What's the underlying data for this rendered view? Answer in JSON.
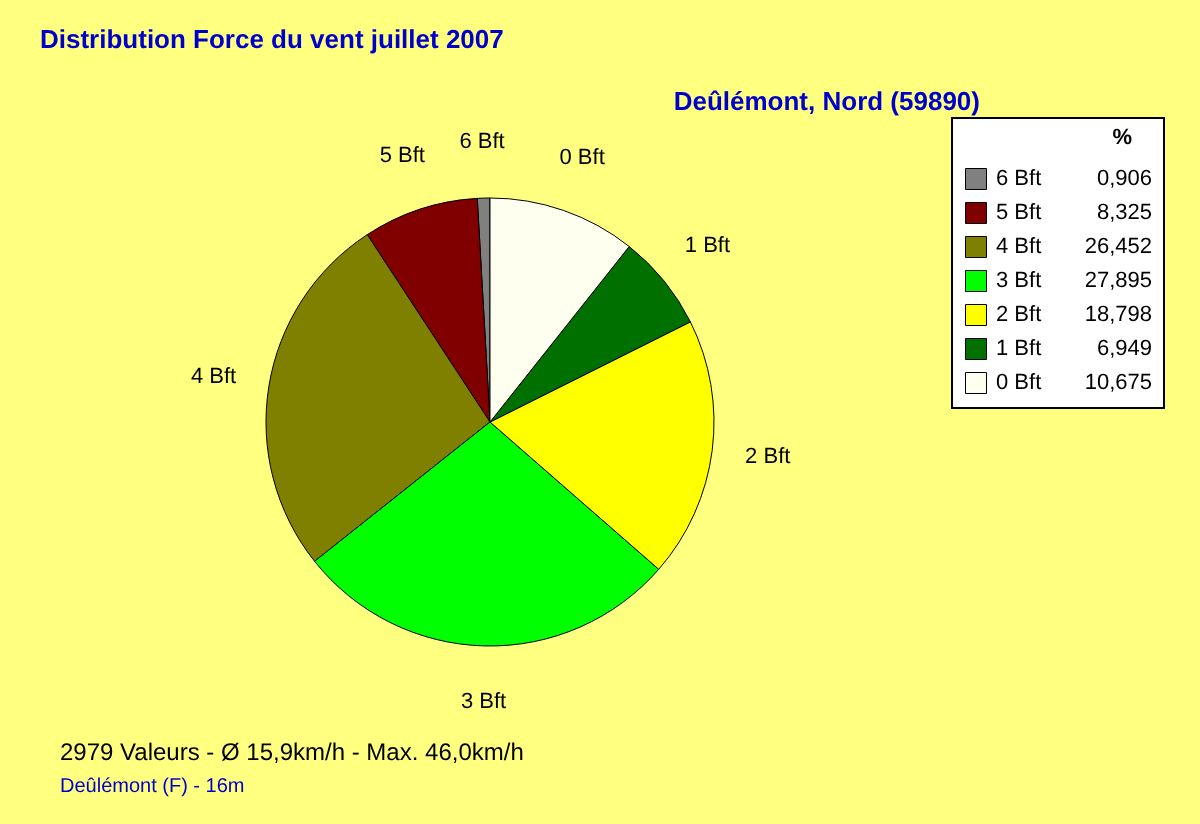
{
  "chart_data": {
    "type": "pie",
    "title": "Distribution Force du vent  juillet 2007",
    "subtitle": "Deûlémont, Nord (59890)",
    "legend_title": "%",
    "categories": [
      "6 Bft",
      "5 Bft",
      "4 Bft",
      "3 Bft",
      "2 Bft",
      "1 Bft",
      "0 Bft"
    ],
    "values": [
      0.906,
      8.325,
      26.452,
      27.895,
      18.798,
      6.949,
      10.675
    ],
    "value_labels": [
      "0,906",
      "8,325",
      "26,452",
      "27,895",
      "18,798",
      "6,949",
      "10,675"
    ],
    "colors": [
      "#808080",
      "#800000",
      "#808000",
      "#00ff00",
      "#ffff00",
      "#007000",
      "#fffff0"
    ],
    "legend": "top right",
    "annotations": [
      "2979 Valeurs   -   Ø 15,9km/h  -  Max. 46,0km/h",
      "Deûlémont (F) - 16m"
    ]
  }
}
